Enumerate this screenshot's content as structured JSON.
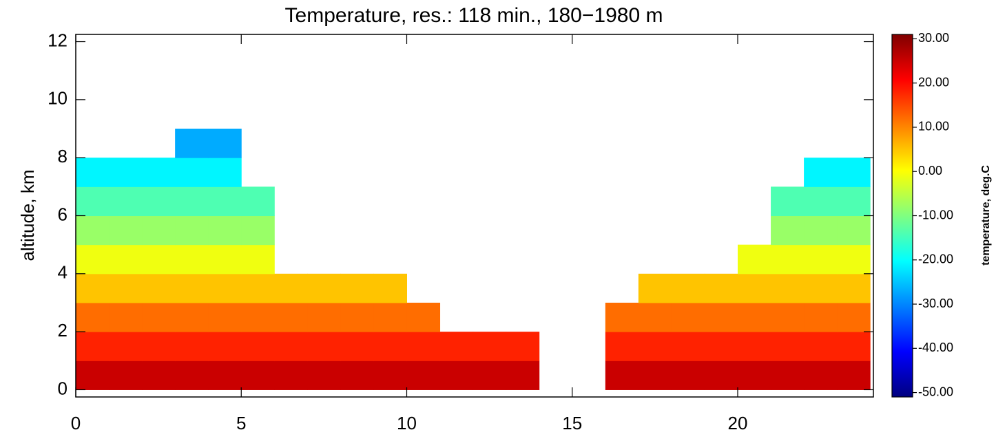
{
  "chart_data": {
    "type": "heatmap",
    "title": "Temperature, res.: 118 min., 180−1980 m",
    "y_label": "altitude, km",
    "colorbar_label": "temperature, deg.C",
    "x": [
      0.5,
      1.5,
      2.5,
      3.5,
      4.5,
      5.5,
      6.5,
      7.5,
      8.5,
      9.5,
      10.5,
      11.5,
      12.5,
      13.5,
      14.5,
      15.5,
      16.5,
      17.5,
      18.5,
      19.5,
      20.5,
      21.5,
      22.5,
      23.5
    ],
    "y": [
      0.5,
      1.5,
      2.5,
      3.5,
      4.5,
      5.5,
      6.5,
      7.5,
      8.5
    ],
    "z": [
      [
        25,
        25,
        25,
        25,
        25,
        25,
        25,
        25,
        25,
        25,
        25,
        25,
        25,
        25,
        null,
        null,
        25,
        25,
        25,
        25,
        25,
        25,
        25,
        25
      ],
      [
        18,
        18,
        18,
        18,
        18,
        18,
        18,
        18,
        18,
        18,
        18,
        18,
        18,
        18,
        null,
        null,
        18,
        18,
        18,
        18,
        18,
        18,
        18,
        18
      ],
      [
        12,
        12,
        12,
        12,
        12,
        12,
        12,
        12,
        12,
        12,
        12,
        null,
        null,
        null,
        null,
        null,
        12,
        12,
        12,
        12,
        12,
        12,
        12,
        12
      ],
      [
        5,
        5,
        5,
        5,
        5,
        5,
        5,
        5,
        5,
        5,
        null,
        null,
        null,
        null,
        null,
        null,
        null,
        5,
        5,
        5,
        5,
        5,
        5,
        5
      ],
      [
        -1,
        -1,
        -1,
        -1,
        -1,
        -1,
        null,
        null,
        null,
        null,
        null,
        null,
        null,
        null,
        null,
        null,
        null,
        null,
        null,
        null,
        -1,
        -1,
        -1,
        -1
      ],
      [
        -8,
        -8,
        -8,
        -8,
        -8,
        -8,
        null,
        null,
        null,
        null,
        null,
        null,
        null,
        null,
        null,
        null,
        null,
        null,
        null,
        null,
        null,
        -8,
        -8,
        -8
      ],
      [
        -14,
        -14,
        -14,
        -14,
        -14,
        -14,
        null,
        null,
        null,
        null,
        null,
        null,
        null,
        null,
        null,
        null,
        null,
        null,
        null,
        null,
        null,
        -14,
        -14,
        -14
      ],
      [
        -21,
        -21,
        -21,
        -21,
        -21,
        null,
        null,
        null,
        null,
        null,
        null,
        null,
        null,
        null,
        null,
        null,
        null,
        null,
        null,
        null,
        null,
        null,
        -21,
        -21
      ],
      [
        null,
        null,
        null,
        -27,
        -27,
        null,
        null,
        null,
        null,
        null,
        null,
        null,
        null,
        null,
        null,
        null,
        null,
        null,
        null,
        null,
        null,
        null,
        null,
        null
      ]
    ],
    "xlim": [
      0,
      24.1
    ],
    "ylim": [
      -0.25,
      12.25
    ],
    "xticks": [
      0,
      5,
      10,
      15,
      20
    ],
    "yticks": [
      0,
      2,
      4,
      6,
      8,
      10,
      12
    ],
    "clim": [
      -51,
      31
    ],
    "cticks": [
      {
        "value": 30,
        "label": "30.00"
      },
      {
        "value": 20,
        "label": "20.00"
      },
      {
        "value": 10,
        "label": "10.00"
      },
      {
        "value": 0,
        "label": "0.00"
      },
      {
        "value": -10,
        "label": "-10.00"
      },
      {
        "value": -20,
        "label": "-20.00"
      },
      {
        "value": -30,
        "label": "-30.00"
      },
      {
        "value": -40,
        "label": "-40.00"
      },
      {
        "value": -50,
        "label": "-50.00"
      }
    ],
    "colormap": [
      "#00007f",
      "#0000ff",
      "#0080ff",
      "#00ffff",
      "#80ff80",
      "#ffff00",
      "#ff8000",
      "#ff0000",
      "#7f0000"
    ]
  }
}
